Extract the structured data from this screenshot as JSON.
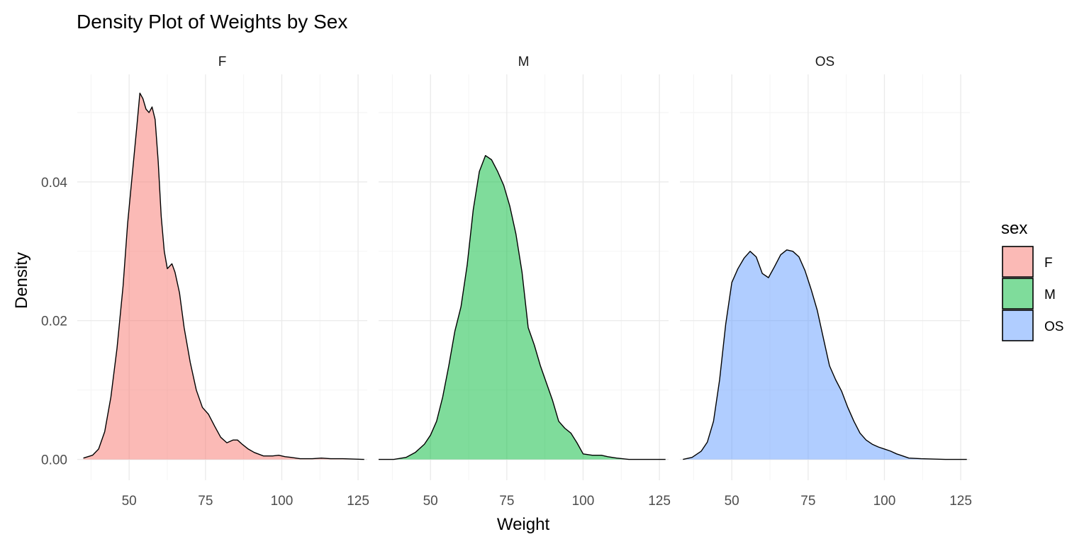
{
  "chart_data": {
    "type": "area",
    "subtype": "density",
    "title": "Density Plot of Weights by Sex",
    "xlabel": "Weight",
    "ylabel": "Density",
    "xlim": [
      33,
      128
    ],
    "ylim": [
      -0.003,
      0.0555
    ],
    "x_ticks": [
      50,
      75,
      100,
      125
    ],
    "x_tick_labels": [
      "50",
      "75",
      "100",
      "125"
    ],
    "y_ticks": [
      0.0,
      0.02,
      0.04
    ],
    "y_tick_labels": [
      "0.00",
      "0.02",
      "0.04"
    ],
    "grid": true,
    "fill_alpha": 0.5,
    "legend": {
      "title": "sex",
      "position": "right",
      "entries": [
        {
          "label": "F",
          "color": "#F8766D"
        },
        {
          "label": "M",
          "color": "#00BA38"
        },
        {
          "label": "OS",
          "color": "#619CFF"
        }
      ]
    },
    "panels": [
      {
        "strip": "F",
        "color": "#F8766D",
        "points": [
          [
            35,
            0.0002
          ],
          [
            38,
            0.0006
          ],
          [
            40,
            0.0015
          ],
          [
            42,
            0.004
          ],
          [
            44,
            0.009
          ],
          [
            46,
            0.016
          ],
          [
            48,
            0.025
          ],
          [
            49.5,
            0.034
          ],
          [
            51,
            0.041
          ],
          [
            52.5,
            0.048
          ],
          [
            53.5,
            0.0528
          ],
          [
            54.5,
            0.052
          ],
          [
            55.5,
            0.0505
          ],
          [
            56.5,
            0.05
          ],
          [
            57.5,
            0.0508
          ],
          [
            58.5,
            0.049
          ],
          [
            59.5,
            0.043
          ],
          [
            60.5,
            0.035
          ],
          [
            61.5,
            0.03
          ],
          [
            62.5,
            0.0275
          ],
          [
            64,
            0.0282
          ],
          [
            65,
            0.027
          ],
          [
            66.5,
            0.024
          ],
          [
            68,
            0.019
          ],
          [
            70,
            0.014
          ],
          [
            72,
            0.01
          ],
          [
            74,
            0.0075
          ],
          [
            76,
            0.0065
          ],
          [
            78,
            0.0048
          ],
          [
            80,
            0.0032
          ],
          [
            82,
            0.0024
          ],
          [
            84,
            0.0028
          ],
          [
            85.5,
            0.0028
          ],
          [
            87,
            0.0022
          ],
          [
            89,
            0.0015
          ],
          [
            91,
            0.001
          ],
          [
            94,
            0.0005
          ],
          [
            97,
            0.0005
          ],
          [
            99,
            0.0006
          ],
          [
            101,
            0.0004
          ],
          [
            103,
            0.0003
          ],
          [
            106,
            0.0001
          ],
          [
            110,
            0.0001
          ],
          [
            113,
            0.0002
          ],
          [
            116,
            0.0001
          ],
          [
            120,
            0.0001
          ],
          [
            127,
            0.0
          ]
        ]
      },
      {
        "strip": "M",
        "color": "#00BA38",
        "points": [
          [
            33,
            0.0
          ],
          [
            38,
            0.0
          ],
          [
            42,
            0.0003
          ],
          [
            45,
            0.001
          ],
          [
            48,
            0.0022
          ],
          [
            50,
            0.0035
          ],
          [
            52,
            0.0055
          ],
          [
            54,
            0.009
          ],
          [
            56,
            0.0135
          ],
          [
            58,
            0.0185
          ],
          [
            60,
            0.022
          ],
          [
            62,
            0.028
          ],
          [
            64,
            0.036
          ],
          [
            66,
            0.0415
          ],
          [
            68,
            0.0438
          ],
          [
            70,
            0.0432
          ],
          [
            72,
            0.0415
          ],
          [
            74,
            0.0395
          ],
          [
            76,
            0.0365
          ],
          [
            78,
            0.0325
          ],
          [
            80,
            0.027
          ],
          [
            82,
            0.019
          ],
          [
            84,
            0.0165
          ],
          [
            86,
            0.0135
          ],
          [
            88,
            0.011
          ],
          [
            90,
            0.0085
          ],
          [
            92,
            0.0055
          ],
          [
            94,
            0.0045
          ],
          [
            96,
            0.0038
          ],
          [
            98,
            0.0024
          ],
          [
            100,
            0.0008
          ],
          [
            103,
            0.0006
          ],
          [
            106,
            0.0006
          ],
          [
            108,
            0.0004
          ],
          [
            111,
            0.0002
          ],
          [
            115,
            0.0
          ],
          [
            127,
            0.0
          ]
        ]
      },
      {
        "strip": "OS",
        "color": "#619CFF",
        "points": [
          [
            34,
            0.0
          ],
          [
            37,
            0.0003
          ],
          [
            40,
            0.0012
          ],
          [
            42,
            0.0025
          ],
          [
            44,
            0.0055
          ],
          [
            46,
            0.0115
          ],
          [
            48,
            0.0195
          ],
          [
            50,
            0.0255
          ],
          [
            52,
            0.0275
          ],
          [
            54,
            0.029
          ],
          [
            56,
            0.03
          ],
          [
            58,
            0.0292
          ],
          [
            60,
            0.0268
          ],
          [
            62,
            0.0262
          ],
          [
            64,
            0.0278
          ],
          [
            66,
            0.0295
          ],
          [
            68,
            0.0302
          ],
          [
            70,
            0.03
          ],
          [
            72,
            0.0292
          ],
          [
            74,
            0.0272
          ],
          [
            76,
            0.0245
          ],
          [
            78,
            0.0215
          ],
          [
            80,
            0.0175
          ],
          [
            82,
            0.0135
          ],
          [
            84,
            0.0115
          ],
          [
            86,
            0.0098
          ],
          [
            88,
            0.0075
          ],
          [
            90,
            0.0055
          ],
          [
            92,
            0.0038
          ],
          [
            94,
            0.0028
          ],
          [
            96,
            0.0022
          ],
          [
            98,
            0.0018
          ],
          [
            100,
            0.0015
          ],
          [
            102,
            0.0012
          ],
          [
            104,
            0.0008
          ],
          [
            106,
            0.0005
          ],
          [
            108,
            0.0002
          ],
          [
            112,
            0.0001
          ],
          [
            120,
            0.0
          ],
          [
            127,
            0.0
          ]
        ]
      }
    ]
  }
}
